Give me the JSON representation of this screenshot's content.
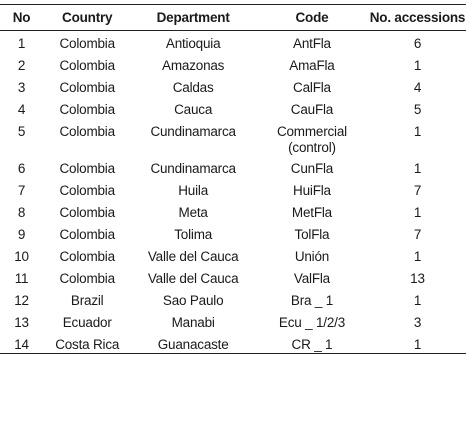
{
  "table": {
    "headers": [
      "No",
      "Country",
      "Department",
      "Code",
      "No. accessions"
    ],
    "rows": [
      {
        "no": "1",
        "country": "Colombia",
        "department": "Antioquia",
        "code": "AntFla",
        "accessions": "6"
      },
      {
        "no": "2",
        "country": "Colombia",
        "department": "Amazonas",
        "code": "AmaFla",
        "accessions": "1"
      },
      {
        "no": "3",
        "country": "Colombia",
        "department": "Caldas",
        "code": "CalFla",
        "accessions": "4"
      },
      {
        "no": "4",
        "country": "Colombia",
        "department": "Cauca",
        "code": "CauFla",
        "accessions": "5"
      },
      {
        "no": "5",
        "country": "Colombia",
        "department": "Cundinamarca",
        "code": "Commercial (control)",
        "accessions": "1"
      },
      {
        "no": "6",
        "country": "Colombia",
        "department": "Cundinamarca",
        "code": "CunFla",
        "accessions": "1"
      },
      {
        "no": "7",
        "country": "Colombia",
        "department": "Huila",
        "code": "HuiFla",
        "accessions": "7"
      },
      {
        "no": "8",
        "country": "Colombia",
        "department": "Meta",
        "code": "MetFla",
        "accessions": "1"
      },
      {
        "no": "9",
        "country": "Colombia",
        "department": "Tolima",
        "code": "TolFla",
        "accessions": "7"
      },
      {
        "no": "10",
        "country": "Colombia",
        "department": "Valle del Cauca",
        "code": "Unión",
        "accessions": "1"
      },
      {
        "no": "11",
        "country": "Colombia",
        "department": "Valle del Cauca",
        "code": "ValFla",
        "accessions": "13"
      },
      {
        "no": "12",
        "country": "Brazil",
        "department": "Sao Paulo",
        "code": "Bra _ 1",
        "accessions": "1"
      },
      {
        "no": "13",
        "country": "Ecuador",
        "department": "Manabi",
        "code": "Ecu _ 1/2/3",
        "accessions": "3"
      },
      {
        "no": "14",
        "country": "Costa Rica",
        "department": "Guanacaste",
        "code": "CR _ 1",
        "accessions": "1"
      }
    ]
  }
}
